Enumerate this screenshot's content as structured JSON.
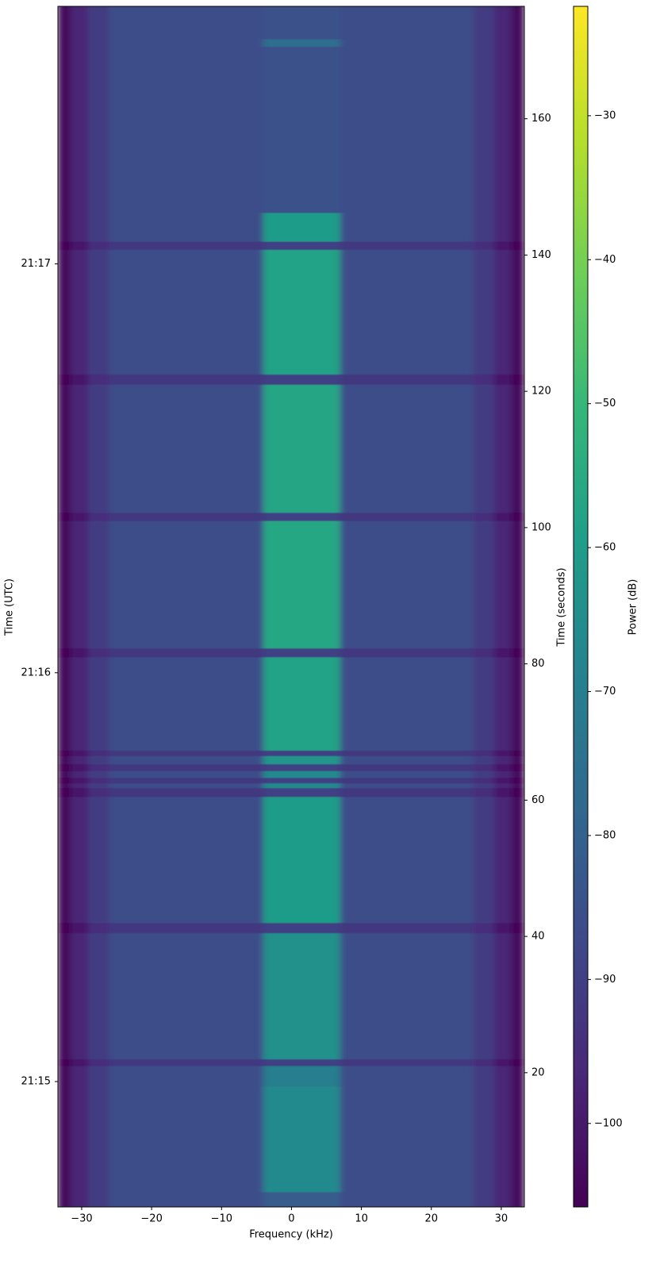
{
  "chart_data": {
    "type": "heatmap",
    "x_label": "Frequency (kHz)",
    "y_label": "Time (UTC)",
    "y2_label": "Time (seconds)",
    "colorbar_label": "Power (dB)",
    "colormap": "viridis",
    "xlim": [
      -33.4,
      33.3
    ],
    "ylim": [
      0.3,
      176.5
    ],
    "y2lim": [
      0.3,
      176.5
    ],
    "clim": [
      -105.8,
      -22.4
    ],
    "xticks": [
      {
        "value": -30,
        "label": "−30"
      },
      {
        "value": -20,
        "label": "−20"
      },
      {
        "value": -10,
        "label": "−10"
      },
      0,
      10,
      20,
      30
    ],
    "yticks": [
      {
        "value": 18.7,
        "label": "21:15"
      },
      {
        "value": 78.7,
        "label": "21:16"
      },
      {
        "value": 138.7,
        "label": "21:17"
      }
    ],
    "y2ticks": [
      20,
      40,
      60,
      80,
      100,
      120,
      140,
      160
    ],
    "cticks": [
      {
        "value": -30,
        "label": "−30"
      },
      {
        "value": -40,
        "label": "−40"
      },
      {
        "value": -50,
        "label": "−50"
      },
      {
        "value": -60,
        "label": "−60"
      },
      {
        "value": -70,
        "label": "−70"
      },
      {
        "value": -80,
        "label": "−80"
      },
      {
        "value": -90,
        "label": "−90"
      },
      {
        "value": -100,
        "label": "−100"
      }
    ],
    "x_edges": [
      -33.4,
      -31.5,
      -29,
      -26,
      -4,
      7,
      26,
      29,
      31.5,
      33.3
    ],
    "y_edges": [
      0.3,
      2.5,
      18,
      21,
      22,
      40.5,
      42,
      60.5,
      61.8,
      62.5,
      63.3,
      64.3,
      65.3,
      66.5,
      67.3,
      81,
      82.3,
      101,
      102.2,
      121,
      122.5,
      140.8,
      142,
      146.2,
      170.6,
      171.7,
      176.5
    ],
    "z": [
      [
        -104,
        -97,
        -91,
        -86,
        -82,
        -86,
        -91,
        -97,
        -104
      ],
      [
        -104,
        -97,
        -91,
        -86,
        -66,
        -86,
        -91,
        -97,
        -104
      ],
      [
        -104,
        -97,
        -91,
        -86,
        -70,
        -86,
        -91,
        -97,
        -104
      ],
      [
        -105,
        -100,
        -95,
        -92,
        -90,
        -92,
        -95,
        -100,
        -105
      ],
      [
        -104,
        -97,
        -91,
        -86,
        -64,
        -86,
        -91,
        -97,
        -104
      ],
      [
        -105,
        -100,
        -95,
        -92,
        -90,
        -92,
        -95,
        -100,
        -105
      ],
      [
        -104,
        -97,
        -91,
        -86,
        -60,
        -86,
        -91,
        -97,
        -104
      ],
      [
        -105,
        -100,
        -95,
        -92,
        -90,
        -92,
        -95,
        -100,
        -105
      ],
      [
        -104,
        -97,
        -91,
        -86,
        -66,
        -86,
        -91,
        -97,
        -104
      ],
      [
        -105,
        -100,
        -95,
        -92,
        -90,
        -92,
        -95,
        -100,
        -105
      ],
      [
        -104,
        -97,
        -91,
        -86,
        -66,
        -86,
        -91,
        -97,
        -104
      ],
      [
        -105,
        -100,
        -95,
        -92,
        -90,
        -92,
        -95,
        -100,
        -105
      ],
      [
        -104,
        -97,
        -91,
        -86,
        -62,
        -86,
        -91,
        -97,
        -104
      ],
      [
        -105,
        -100,
        -95,
        -92,
        -90,
        -92,
        -95,
        -100,
        -105
      ],
      [
        -104,
        -97,
        -91,
        -86,
        -58,
        -86,
        -91,
        -97,
        -104
      ],
      [
        -105,
        -100,
        -95,
        -92,
        -90,
        -92,
        -95,
        -100,
        -105
      ],
      [
        -104,
        -97,
        -91,
        -86,
        -56,
        -86,
        -91,
        -97,
        -104
      ],
      [
        -105,
        -100,
        -95,
        -92,
        -90,
        -92,
        -95,
        -100,
        -105
      ],
      [
        -104,
        -97,
        -91,
        -86,
        -57,
        -86,
        -91,
        -97,
        -104
      ],
      [
        -105,
        -100,
        -95,
        -92,
        -90,
        -92,
        -95,
        -100,
        -105
      ],
      [
        -104,
        -97,
        -91,
        -86,
        -58,
        -86,
        -91,
        -97,
        -104
      ],
      [
        -105,
        -100,
        -95,
        -92,
        -90,
        -92,
        -95,
        -100,
        -105
      ],
      [
        -104,
        -97,
        -91,
        -86,
        -60,
        -86,
        -91,
        -97,
        -104
      ],
      [
        -104,
        -97,
        -91,
        -86,
        -85,
        -86,
        -91,
        -97,
        -104
      ],
      [
        -104,
        -97,
        -91,
        -86,
        -76,
        -86,
        -91,
        -97,
        -104
      ],
      [
        -104,
        -97,
        -91,
        -86,
        -85,
        -86,
        -91,
        -97,
        -104
      ]
    ]
  }
}
